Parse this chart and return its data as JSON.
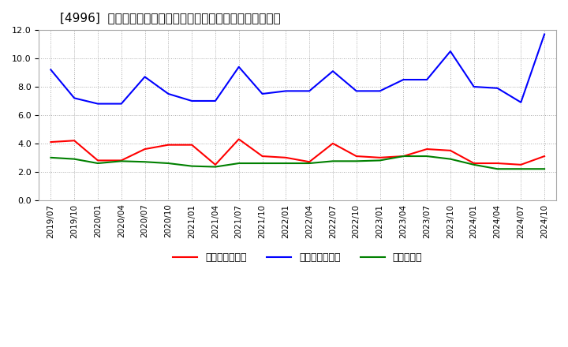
{
  "title": "[4996]  売上債権回転率、買入債務回転率、在庫回転率の推移",
  "xlabel": "",
  "ylabel": "",
  "ylim": [
    0.0,
    12.0
  ],
  "yticks": [
    0.0,
    2.0,
    4.0,
    6.0,
    8.0,
    10.0,
    12.0
  ],
  "x_labels": [
    "2019/07",
    "2019/10",
    "2020/01",
    "2020/04",
    "2020/07",
    "2020/10",
    "2021/01",
    "2021/04",
    "2021/07",
    "2021/10",
    "2022/01",
    "2022/04",
    "2022/07",
    "2022/10",
    "2023/01",
    "2023/04",
    "2023/07",
    "2023/10",
    "2024/01",
    "2024/04",
    "2024/07",
    "2024/10"
  ],
  "series_receivable": [
    4.1,
    4.2,
    2.8,
    2.8,
    3.6,
    3.9,
    3.9,
    2.5,
    4.3,
    3.1,
    3.0,
    2.7,
    4.0,
    3.1,
    3.0,
    3.1,
    3.6,
    3.5,
    2.6,
    2.6,
    2.5,
    3.1
  ],
  "series_payable": [
    9.2,
    7.2,
    6.8,
    6.8,
    8.7,
    7.5,
    7.0,
    7.0,
    9.4,
    7.5,
    7.7,
    7.7,
    9.1,
    7.7,
    7.7,
    8.5,
    8.5,
    10.5,
    8.0,
    7.9,
    6.9,
    11.7
  ],
  "series_inventory": [
    3.0,
    2.9,
    2.6,
    2.75,
    2.7,
    2.6,
    2.4,
    2.35,
    2.6,
    2.6,
    2.6,
    2.6,
    2.75,
    2.75,
    2.8,
    3.1,
    3.1,
    2.9,
    2.5,
    2.2,
    2.2,
    2.2
  ],
  "color_receivable": "#ff0000",
  "color_payable": "#0000ff",
  "color_inventory": "#008000",
  "label_receivable": "売上債権回転率",
  "label_payable": "買入債務回転率",
  "label_inventory": "在庫回転率",
  "background_color": "#ffffff",
  "plot_bg_color": "#ffffff",
  "grid_color": "#aaaaaa",
  "legend_pos": "lower center"
}
